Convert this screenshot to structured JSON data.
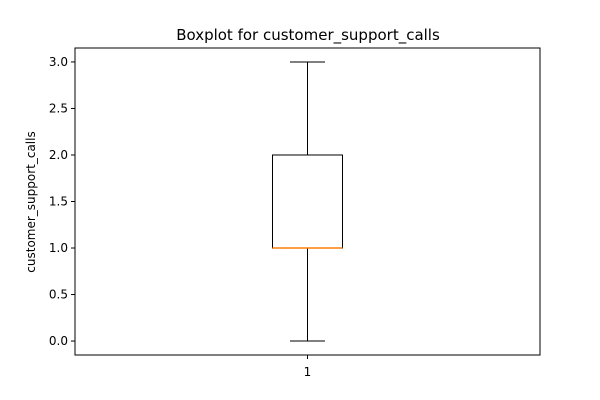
{
  "chart_data": {
    "type": "box",
    "title": "Boxplot for customer_support_calls",
    "xlabel": "",
    "ylabel": "customer_support_calls",
    "categories": [
      "1"
    ],
    "boxes": [
      {
        "category": "1",
        "whisker_low": 0.0,
        "q1": 1.0,
        "median": 1.0,
        "q3": 2.0,
        "whisker_high": 3.0
      }
    ],
    "ylim": [
      -0.15,
      3.15
    ],
    "yticks": [
      0.0,
      0.5,
      1.0,
      1.5,
      2.0,
      2.5,
      3.0
    ],
    "ytick_labels": [
      "0.0",
      "0.5",
      "1.0",
      "1.5",
      "2.0",
      "2.5",
      "3.0"
    ],
    "grid": false,
    "colors": {
      "median": "#ff7f0e",
      "box": "#000000"
    }
  }
}
